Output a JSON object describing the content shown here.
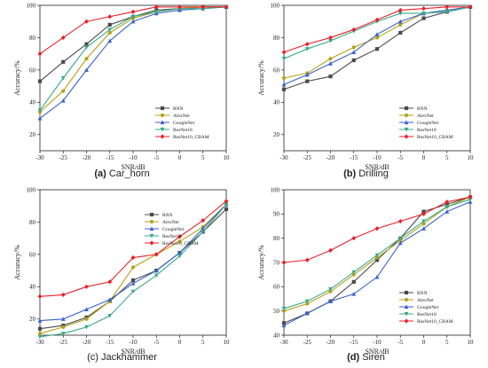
{
  "colors": {
    "RNN": "#4a4a4a",
    "AlexNet": "#b5a21a",
    "GoogleNet": "#3a62c8",
    "ResNet18": "#3aaa8a",
    "ResNet10_CBAM": "#e8202a"
  },
  "chart_data": [
    {
      "type": "line",
      "caption_letter": "(a)",
      "caption_name": "Car_horn",
      "xlabel": "SNR/dB",
      "ylabel": "Accuracy/%",
      "x": [
        -30,
        -25,
        -20,
        -15,
        -10,
        -5,
        0,
        5,
        10
      ],
      "xlim": [
        -30,
        10
      ],
      "ylim": [
        10,
        100
      ],
      "yticks": [
        20,
        40,
        60,
        80,
        100
      ],
      "legend_position": "bottom-right",
      "series": [
        {
          "name": "RNN",
          "marker": "square",
          "values": [
            53,
            65,
            76,
            88,
            93,
            97,
            98,
            99,
            99
          ]
        },
        {
          "name": "AlexNet",
          "marker": "circle",
          "values": [
            34,
            47,
            67,
            83,
            92,
            96,
            98,
            99,
            99
          ]
        },
        {
          "name": "GoogleNet",
          "marker": "triangle-up",
          "values": [
            30,
            41,
            60,
            78,
            90,
            95,
            97,
            98,
            99
          ]
        },
        {
          "name": "ResNet18",
          "marker": "triangle-down",
          "values": [
            35,
            55,
            74,
            85,
            93,
            96,
            98,
            98,
            99
          ]
        },
        {
          "name": "ResNet10_CBAM",
          "marker": "diamond",
          "values": [
            70,
            80,
            90,
            93,
            96,
            99,
            99,
            99,
            99
          ]
        }
      ]
    },
    {
      "type": "line",
      "caption_letter": "(b)",
      "caption_name": "Drilling",
      "xlabel": "SNR/dB",
      "ylabel": "Accuracy/%",
      "x": [
        -30,
        -25,
        -20,
        -15,
        -10,
        -5,
        0,
        5,
        10
      ],
      "xlim": [
        -30,
        10
      ],
      "ylim": [
        10,
        100
      ],
      "yticks": [
        20,
        40,
        60,
        80,
        100
      ],
      "legend_position": "bottom-right",
      "series": [
        {
          "name": "RNN",
          "marker": "square",
          "values": [
            48,
            53,
            56,
            66,
            73,
            83,
            92,
            96,
            99
          ]
        },
        {
          "name": "AlexNet",
          "marker": "circle",
          "values": [
            55,
            58,
            67,
            74,
            80,
            88,
            95,
            97,
            99
          ]
        },
        {
          "name": "GoogleNet",
          "marker": "triangle-up",
          "values": [
            51,
            57,
            64,
            71,
            82,
            90,
            95,
            97,
            99
          ]
        },
        {
          "name": "ResNet18",
          "marker": "triangle-down",
          "values": [
            67,
            73,
            78,
            84,
            90,
            95,
            95,
            96,
            99
          ]
        },
        {
          "name": "ResNet10_CBAM",
          "marker": "diamond",
          "values": [
            71,
            76,
            80,
            85,
            91,
            97,
            98,
            99,
            99
          ]
        }
      ]
    },
    {
      "type": "line",
      "caption_letter": "(c)",
      "caption_name": "Jackhammer",
      "xlabel": "SNR/dB",
      "ylabel": "Accuracy/%",
      "x": [
        -30,
        -25,
        -20,
        -15,
        -10,
        -5,
        0,
        5,
        10
      ],
      "xlim": [
        -30,
        10
      ],
      "ylim": [
        10,
        100
      ],
      "yticks": [
        20,
        40,
        60,
        80,
        100
      ],
      "legend_position": "top-left",
      "series": [
        {
          "name": "RNN",
          "marker": "square",
          "values": [
            14,
            16,
            21,
            31,
            44,
            50,
            61,
            74,
            88
          ]
        },
        {
          "name": "AlexNet",
          "marker": "circle",
          "values": [
            11,
            15,
            20,
            31,
            52,
            60,
            68,
            77,
            91
          ]
        },
        {
          "name": "GoogleNet",
          "marker": "triangle-up",
          "values": [
            19,
            20,
            26,
            32,
            42,
            50,
            61,
            76,
            91
          ]
        },
        {
          "name": "ResNet18",
          "marker": "triangle-down",
          "values": [
            9,
            11,
            15,
            22,
            37,
            47,
            59,
            74,
            91
          ]
        },
        {
          "name": "ResNet10_CBAM",
          "marker": "diamond",
          "values": [
            34,
            35,
            40,
            43,
            58,
            60,
            71,
            81,
            93
          ]
        }
      ]
    },
    {
      "type": "line",
      "caption_letter": "(d)",
      "caption_name": "Siren",
      "xlabel": "SNR/dB",
      "ylabel": "Accuracy/%",
      "x": [
        -30,
        -25,
        -20,
        -15,
        -10,
        -5,
        0,
        5,
        10
      ],
      "xlim": [
        -30,
        10
      ],
      "ylim": [
        40,
        100
      ],
      "yticks": [
        40,
        50,
        60,
        70,
        80,
        90,
        100
      ],
      "legend_position": "bottom-right",
      "series": [
        {
          "name": "RNN",
          "marker": "square",
          "values": [
            45,
            49,
            54,
            62,
            71,
            80,
            91,
            94,
            97
          ]
        },
        {
          "name": "AlexNet",
          "marker": "circle",
          "values": [
            50,
            53,
            58,
            65,
            72,
            79,
            86,
            93,
            97
          ]
        },
        {
          "name": "GoogleNet",
          "marker": "triangle-up",
          "values": [
            44,
            49,
            54,
            57,
            64,
            78,
            84,
            91,
            95
          ]
        },
        {
          "name": "ResNet18",
          "marker": "triangle-down",
          "values": [
            51,
            54,
            59,
            66,
            73,
            80,
            87,
            93,
            96
          ]
        },
        {
          "name": "ResNet10_CBAM",
          "marker": "diamond",
          "values": [
            70,
            71,
            75,
            80,
            84,
            87,
            90,
            95,
            97
          ]
        }
      ]
    }
  ]
}
